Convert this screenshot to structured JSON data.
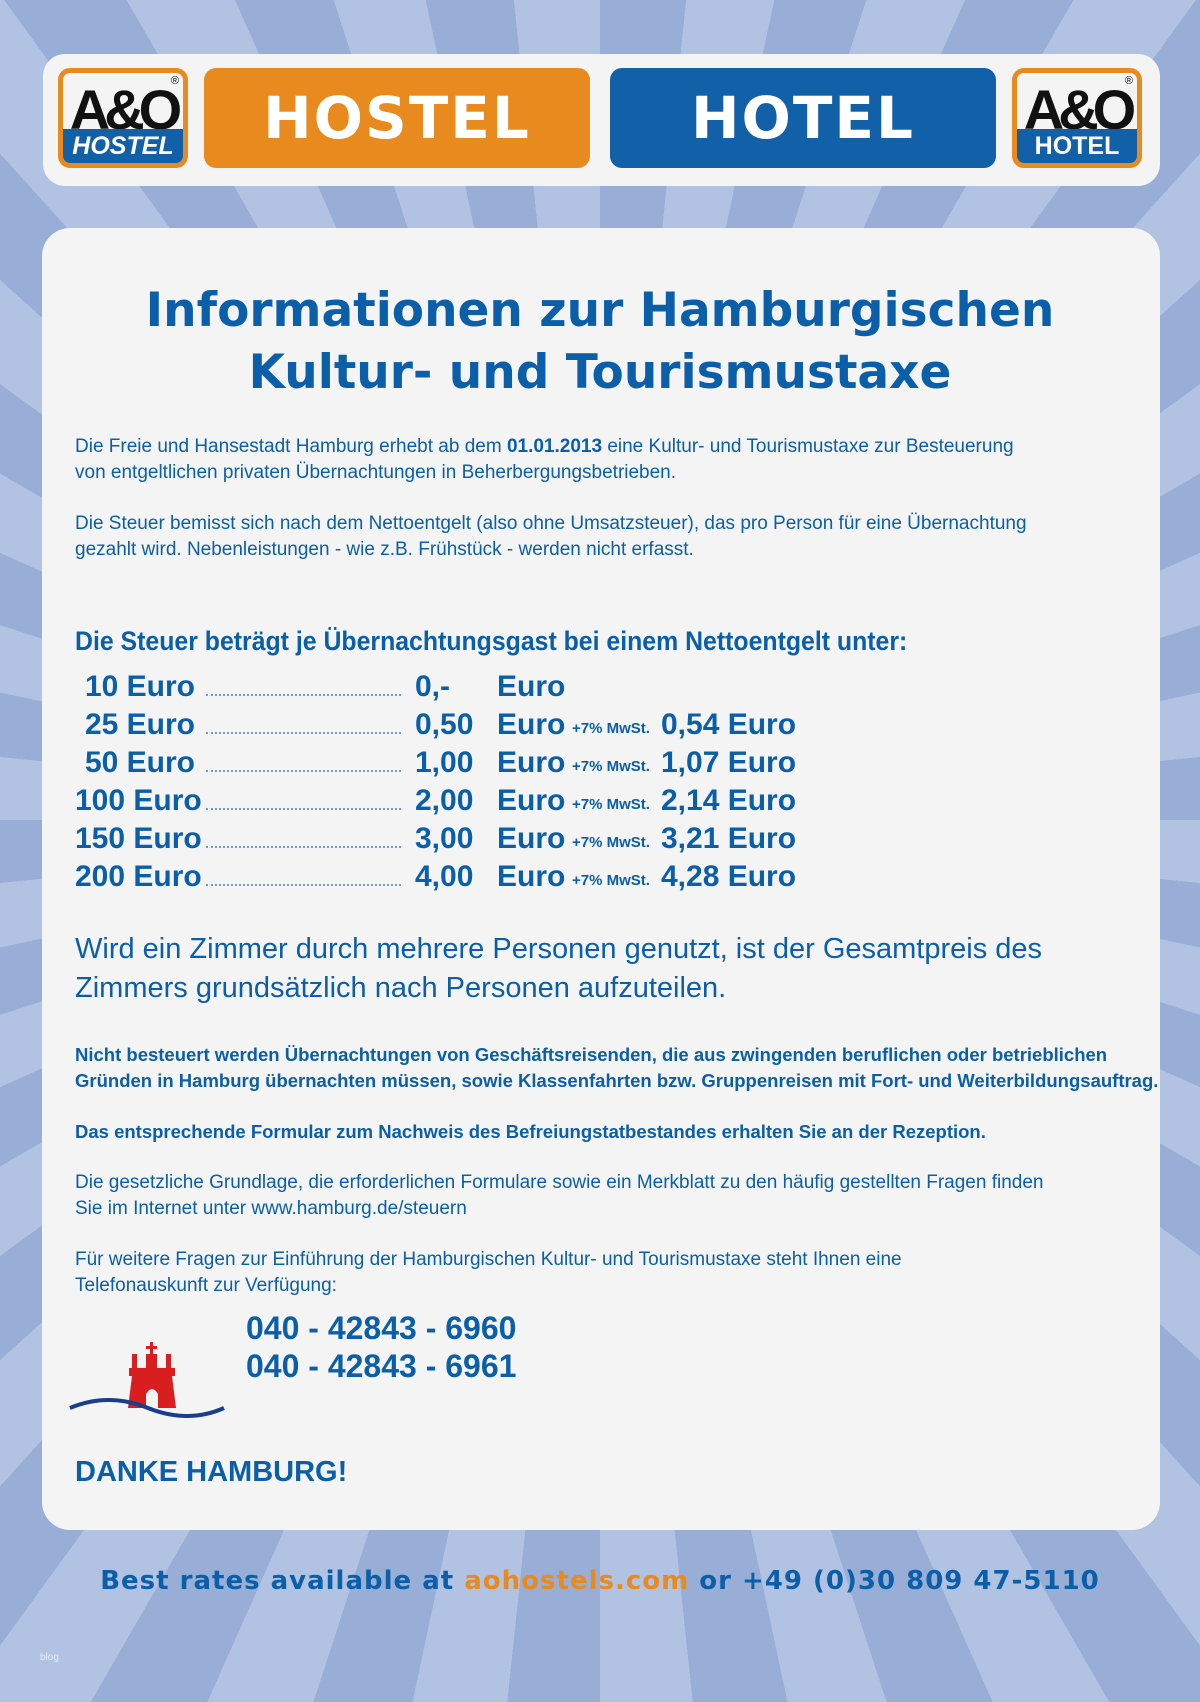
{
  "header": {
    "left_logo": {
      "mark": "A&O",
      "label": "HOSTEL"
    },
    "hostel_label": "HOSTEL",
    "hotel_label": "HOTEL",
    "right_logo": {
      "mark": "A&O",
      "label": "HOTEL"
    },
    "colors": {
      "orange": "#e98a1e",
      "blue": "#1160a8"
    }
  },
  "title": [
    "Informationen zur Hamburgischen",
    "Kultur- und Tourismustaxe"
  ],
  "intro": {
    "p1_a": "Die Freie und Hansestadt Hamburg erhebt ab dem ",
    "p1_date": "01.01.2013",
    "p1_b": " eine Kultur- und Tourismustaxe zur Besteuerung",
    "p1_c": "von entgeltlichen privaten Übernachtungen in Beherbergungsbetrieben.",
    "p2": [
      "Die Steuer bemisst sich nach dem Nettoentgelt (also ohne Umsatzsteuer), das pro Person für eine Übernachtung",
      "gezahlt wird. Nebenleistungen - wie z.B. Frühstück - werden nicht erfasst."
    ]
  },
  "tax_heading": "Die Steuer beträgt je Übernachtungsgast bei einem Nettoentgelt unter:",
  "tax_rows": [
    {
      "net": "10 Euro",
      "tax": "0,-",
      "unit": "Euro",
      "vat": "",
      "gross": ""
    },
    {
      "net": "25 Euro",
      "tax": "0,50",
      "unit": "Euro",
      "vat": "+7% MwSt.",
      "gross": "0,54 Euro"
    },
    {
      "net": "50 Euro",
      "tax": "1,00",
      "unit": "Euro",
      "vat": "+7% MwSt.",
      "gross": "1,07 Euro"
    },
    {
      "net": "100 Euro",
      "tax": "2,00",
      "unit": "Euro",
      "vat": "+7% MwSt.",
      "gross": "2,14 Euro"
    },
    {
      "net": "150 Euro",
      "tax": "3,00",
      "unit": "Euro",
      "vat": "+7% MwSt.",
      "gross": "3,21 Euro"
    },
    {
      "net": "200 Euro",
      "tax": "4,00",
      "unit": "Euro",
      "vat": "+7% MwSt.",
      "gross": "4,28 Euro"
    }
  ],
  "room_note": [
    "Wird ein Zimmer durch mehrere Personen genutzt, ist der Gesamtpreis des",
    "Zimmers grundsätzlich nach Personen aufzuteilen."
  ],
  "exempt": [
    "Nicht besteuert werden Übernachtungen von Geschäftsreisenden, die aus zwingenden beruflichen oder betrieblichen",
    "Gründen in Hamburg übernachten müssen, sowie Klassenfahrten bzw. Gruppenreisen mit Fort- und Weiterbildungsauftrag."
  ],
  "form_note": "Das entsprechende Formular zum Nachweis des Befreiungstatbestandes erhalten Sie an der Rezeption.",
  "legal": [
    "Die gesetzliche Grundlage, die erforderlichen Formulare sowie ein Merkblatt zu den häufig gestellten Fragen finden",
    "Sie im Internet unter www.hamburg.de/steuern"
  ],
  "questions": [
    "Für weitere Fragen zur Einführung der Hamburgischen Kultur- und Tourismustaxe steht Ihnen eine",
    "Telefonauskunft zur Verfügung:"
  ],
  "phones": [
    "040 - 42843 - 6960",
    "040 - 42843 - 6961"
  ],
  "thanks": "DANKE HAMBURG!",
  "footer": {
    "a": "Best rates available at ",
    "site": "aohostels.com",
    "b": " or +49 (0)30 809 47-5110"
  },
  "watermark": "blog"
}
